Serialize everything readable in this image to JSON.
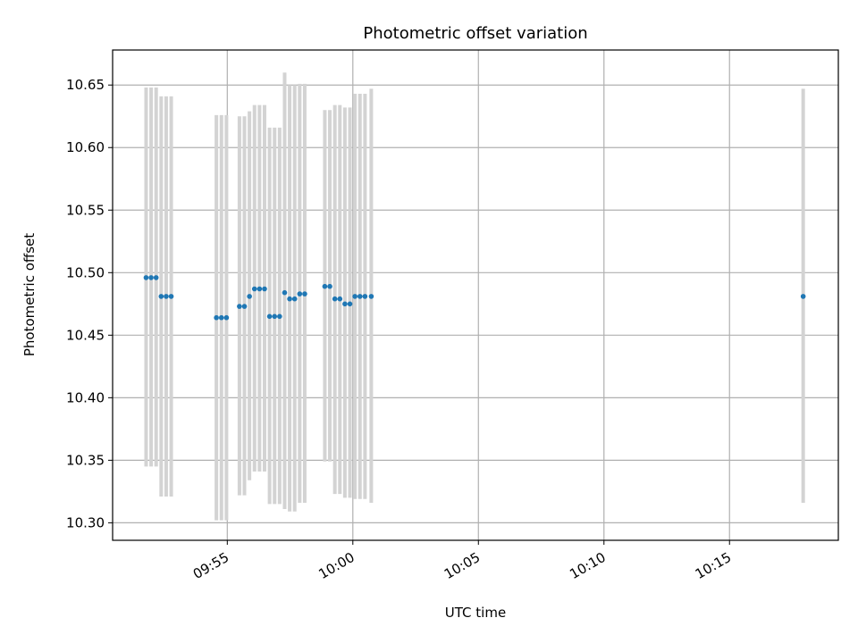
{
  "chart_data": {
    "type": "scatter",
    "title": "Photometric offset variation",
    "xlabel": "UTC time",
    "ylabel": "Photometric offset",
    "grid": true,
    "xlim": [
      "09:50:26",
      "10:19:20"
    ],
    "ylim": [
      10.286,
      10.678
    ],
    "x_ticks": [
      "09:55",
      "10:00",
      "10:05",
      "10:10",
      "10:15"
    ],
    "y_ticks": [
      "10.30",
      "10.35",
      "10.40",
      "10.45",
      "10.50",
      "10.55",
      "10.60",
      "10.65"
    ],
    "colors": {
      "point": "#1f77b4",
      "errorbar": "#d3d3d3",
      "grid": "#b0b0b0"
    },
    "series": [
      {
        "x": [
          "09:51:46",
          "09:51:58",
          "09:52:10",
          "09:52:22",
          "09:52:34",
          "09:52:46",
          "09:54:34",
          "09:54:46",
          "09:54:58",
          "09:55:29",
          "09:55:41",
          "09:55:53",
          "09:56:05",
          "09:56:17",
          "09:56:29",
          "09:56:41",
          "09:56:53",
          "09:57:05",
          "09:57:17",
          "09:57:29",
          "09:57:41",
          "09:57:53",
          "09:58:05",
          "09:58:53",
          "09:59:05",
          "09:59:17",
          "09:59:29",
          "09:59:41",
          "09:59:53",
          "10:00:05",
          "10:00:17",
          "10:00:29",
          "10:00:44",
          "10:17:56"
        ],
        "y": [
          10.496,
          10.496,
          10.496,
          10.481,
          10.481,
          10.481,
          10.464,
          10.464,
          10.464,
          10.473,
          10.473,
          10.481,
          10.487,
          10.487,
          10.487,
          10.465,
          10.465,
          10.465,
          10.484,
          10.479,
          10.479,
          10.483,
          10.483,
          10.489,
          10.489,
          10.479,
          10.479,
          10.475,
          10.475,
          10.481,
          10.481,
          10.481,
          10.481,
          10.481
        ],
        "err_low": [
          10.345,
          10.345,
          10.345,
          10.321,
          10.321,
          10.321,
          10.302,
          10.302,
          10.302,
          10.322,
          10.322,
          10.334,
          10.341,
          10.341,
          10.341,
          10.315,
          10.315,
          10.315,
          10.311,
          10.309,
          10.309,
          10.316,
          10.316,
          10.349,
          10.349,
          10.323,
          10.323,
          10.32,
          10.32,
          10.319,
          10.319,
          10.319,
          10.316,
          10.316
        ],
        "err_high": [
          10.648,
          10.648,
          10.648,
          10.641,
          10.641,
          10.641,
          10.626,
          10.626,
          10.626,
          10.625,
          10.625,
          10.629,
          10.634,
          10.634,
          10.634,
          10.616,
          10.616,
          10.616,
          10.66,
          10.65,
          10.65,
          10.651,
          10.651,
          10.63,
          10.63,
          10.634,
          10.634,
          10.632,
          10.632,
          10.643,
          10.643,
          10.643,
          10.647,
          10.647
        ]
      }
    ]
  }
}
